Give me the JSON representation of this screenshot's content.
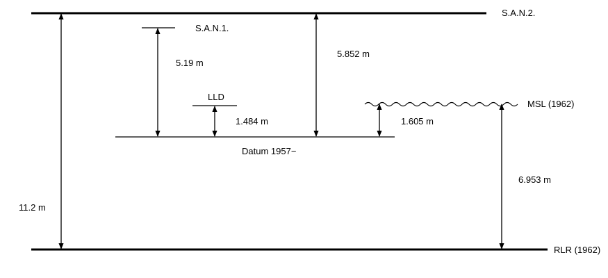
{
  "diagram": {
    "levels": {
      "san2": "S.A.N.2.",
      "san1": "S.A.N.1.",
      "lld": "LLD",
      "msl": "MSL (1962)",
      "datum": "Datum 1957−",
      "rlr": "RLR (1962)"
    },
    "measurements": {
      "rlr_to_san2": "11.2 m",
      "datum_to_san1": "5.19 m",
      "datum_to_san2": "5.852 m",
      "datum_to_lld": "1.484 m",
      "datum_to_msl": "1.605 m",
      "rlr_to_msl": "6.953 m"
    }
  }
}
